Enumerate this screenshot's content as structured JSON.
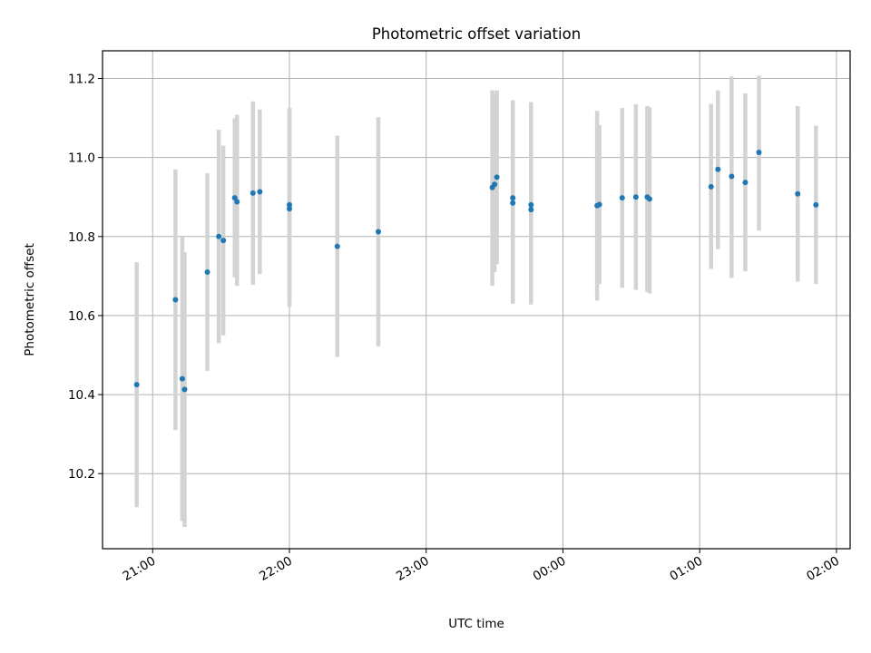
{
  "chart_data": {
    "type": "scatter",
    "title": "Photometric offset variation",
    "xlabel": "UTC time",
    "ylabel": "Photometric offset",
    "x_unit": "hours past midnight",
    "xlim": [
      "20:38",
      "02:06"
    ],
    "ylim": [
      10.01,
      11.27
    ],
    "x_ticks": [
      {
        "label": "21:00",
        "value": "21:00"
      },
      {
        "label": "22:00",
        "value": "22:00"
      },
      {
        "label": "23:00",
        "value": "23:00"
      },
      {
        "label": "00:00",
        "value": "00:00"
      },
      {
        "label": "01:00",
        "value": "01:00"
      },
      {
        "label": "02:00",
        "value": "02:00"
      }
    ],
    "y_ticks": [
      {
        "label": "10.2",
        "value": 10.2
      },
      {
        "label": "10.4",
        "value": 10.4
      },
      {
        "label": "10.6",
        "value": 10.6
      },
      {
        "label": "10.8",
        "value": 10.8
      },
      {
        "label": "11.0",
        "value": 11.0
      },
      {
        "label": "11.2",
        "value": 11.2
      }
    ],
    "grid": true,
    "marker_color": "#1f77b4",
    "errorbar_color": "#d3d3d3",
    "points": [
      {
        "x": "20:53",
        "y": 10.425,
        "ylo": 10.115,
        "yhi": 10.735
      },
      {
        "x": "21:10",
        "y": 10.64,
        "ylo": 10.31,
        "yhi": 10.97
      },
      {
        "x": "21:13",
        "y": 10.44,
        "ylo": 10.08,
        "yhi": 10.8
      },
      {
        "x": "21:14",
        "y": 10.413,
        "ylo": 10.065,
        "yhi": 10.76
      },
      {
        "x": "21:24",
        "y": 10.71,
        "ylo": 10.46,
        "yhi": 10.96
      },
      {
        "x": "21:29",
        "y": 10.8,
        "ylo": 10.53,
        "yhi": 11.07
      },
      {
        "x": "21:31",
        "y": 10.79,
        "ylo": 10.55,
        "yhi": 11.03
      },
      {
        "x": "21:36",
        "y": 10.898,
        "ylo": 10.697,
        "yhi": 11.099
      },
      {
        "x": "21:37",
        "y": 10.888,
        "ylo": 10.675,
        "yhi": 11.108
      },
      {
        "x": "21:44",
        "y": 10.91,
        "ylo": 10.678,
        "yhi": 11.142
      },
      {
        "x": "21:47",
        "y": 10.913,
        "ylo": 10.705,
        "yhi": 11.121
      },
      {
        "x": "22:00",
        "y": 10.88,
        "ylo": 10.64,
        "yhi": 11.125
      },
      {
        "x": "22:00",
        "y": 10.87,
        "ylo": 10.622,
        "yhi": 11.118
      },
      {
        "x": "22:21",
        "y": 10.775,
        "ylo": 10.495,
        "yhi": 11.055
      },
      {
        "x": "22:39",
        "y": 10.812,
        "ylo": 10.522,
        "yhi": 11.102
      },
      {
        "x": "23:29",
        "y": 10.924,
        "ylo": 10.675,
        "yhi": 11.17
      },
      {
        "x": "23:30",
        "y": 10.932,
        "ylo": 10.71,
        "yhi": 11.16
      },
      {
        "x": "23:31",
        "y": 10.95,
        "ylo": 10.73,
        "yhi": 11.17
      },
      {
        "x": "23:38",
        "y": 10.898,
        "ylo": 10.63,
        "yhi": 11.145
      },
      {
        "x": "23:38",
        "y": 10.885,
        "ylo": 10.632,
        "yhi": 11.142
      },
      {
        "x": "23:46",
        "y": 10.88,
        "ylo": 10.628,
        "yhi": 11.14
      },
      {
        "x": "23:46",
        "y": 10.868,
        "ylo": 10.635,
        "yhi": 11.122
      },
      {
        "x": "00:15",
        "y": 10.878,
        "ylo": 10.638,
        "yhi": 11.118
      },
      {
        "x": "00:16",
        "y": 10.881,
        "ylo": 10.68,
        "yhi": 11.082
      },
      {
        "x": "00:26",
        "y": 10.898,
        "ylo": 10.67,
        "yhi": 11.125
      },
      {
        "x": "00:32",
        "y": 10.9,
        "ylo": 10.665,
        "yhi": 11.135
      },
      {
        "x": "00:37",
        "y": 10.9,
        "ylo": 10.66,
        "yhi": 11.13
      },
      {
        "x": "00:38",
        "y": 10.895,
        "ylo": 10.656,
        "yhi": 11.127
      },
      {
        "x": "01:05",
        "y": 10.926,
        "ylo": 10.718,
        "yhi": 11.136
      },
      {
        "x": "01:08",
        "y": 10.97,
        "ylo": 10.768,
        "yhi": 11.17
      },
      {
        "x": "01:14",
        "y": 10.952,
        "ylo": 10.695,
        "yhi": 11.205
      },
      {
        "x": "01:20",
        "y": 10.937,
        "ylo": 10.712,
        "yhi": 11.162
      },
      {
        "x": "01:26",
        "y": 11.013,
        "ylo": 10.815,
        "yhi": 11.207
      },
      {
        "x": "01:43",
        "y": 10.908,
        "ylo": 10.686,
        "yhi": 11.13
      },
      {
        "x": "01:51",
        "y": 10.88,
        "ylo": 10.68,
        "yhi": 11.08
      }
    ]
  }
}
